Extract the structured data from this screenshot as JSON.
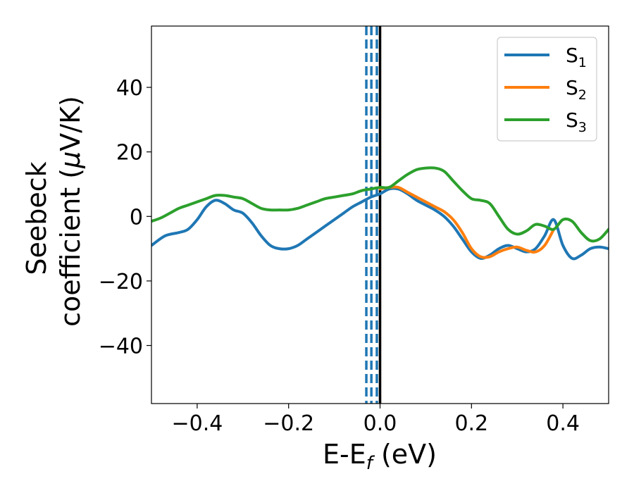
{
  "chart_data": {
    "type": "line",
    "title": "",
    "xlabel": {
      "main": "E-E",
      "sub": "f",
      "unit": " (eV)"
    },
    "ylabel": {
      "line1": "Seebeck",
      "line2": "coefficient  (",
      "mu": "μ",
      "line2_end": "V/K)"
    },
    "xlim": [
      -0.5,
      0.5
    ],
    "ylim": [
      -58,
      59
    ],
    "xticks": [
      -0.4,
      -0.2,
      0.0,
      0.2,
      0.4
    ],
    "xtick_labels": [
      "−0.4",
      "−0.2",
      "0.0",
      "0.2",
      "0.4"
    ],
    "yticks": [
      -40,
      -20,
      0,
      20,
      40
    ],
    "ytick_labels": [
      "−40",
      "−20",
      "0",
      "20",
      "40"
    ],
    "grid": false,
    "legend_position": "top-right",
    "vlines": [
      {
        "x": -0.03,
        "style": "dashed",
        "color": "#1f77b4"
      },
      {
        "x": -0.019,
        "style": "dashed",
        "color": "#1f77b4"
      },
      {
        "x": -0.007,
        "style": "dashed",
        "color": "#1f77b4"
      },
      {
        "x": 0.0,
        "style": "solid",
        "color": "#000000"
      }
    ],
    "series": [
      {
        "name": "S",
        "sub": "1",
        "color": "#1f77b4",
        "x": [
          -0.5,
          -0.47,
          -0.44,
          -0.42,
          -0.4,
          -0.38,
          -0.36,
          -0.34,
          -0.32,
          -0.3,
          -0.28,
          -0.26,
          -0.24,
          -0.22,
          -0.2,
          -0.18,
          -0.16,
          -0.14,
          -0.12,
          -0.1,
          -0.08,
          -0.06,
          -0.04,
          -0.02,
          0.0,
          0.02,
          0.04,
          0.06,
          0.08,
          0.1,
          0.12,
          0.14,
          0.16,
          0.18,
          0.2,
          0.22,
          0.24,
          0.26,
          0.28,
          0.3,
          0.32,
          0.34,
          0.36,
          0.38,
          0.4,
          0.42,
          0.44,
          0.46,
          0.48,
          0.5
        ],
        "y": [
          -9,
          -6,
          -5,
          -4,
          -1,
          3,
          5,
          4,
          2,
          1,
          -2,
          -6,
          -9,
          -10,
          -10,
          -9,
          -7,
          -5,
          -3,
          -1,
          1,
          3,
          4.5,
          6,
          7,
          8.5,
          8.5,
          7,
          5,
          3.5,
          2,
          0,
          -3,
          -7,
          -11,
          -13,
          -12,
          -10,
          -9,
          -10,
          -11,
          -10,
          -6,
          -1,
          -9,
          -13,
          -12,
          -10,
          -9.5,
          -10
        ],
        "y_note": "S1 overlaps S2 for most of the range"
      },
      {
        "name": "S",
        "sub": "2",
        "color": "#ff7f0e",
        "x": [
          0.0,
          0.02,
          0.04,
          0.06,
          0.08,
          0.1,
          0.12,
          0.14,
          0.16,
          0.18,
          0.2,
          0.22,
          0.24,
          0.26,
          0.28,
          0.3,
          0.32,
          0.34,
          0.36,
          0.38
        ],
        "y": [
          8.5,
          9,
          9,
          7.5,
          6,
          4.5,
          3,
          1.5,
          -1,
          -5,
          -10,
          -12.5,
          -12.5,
          -11,
          -10,
          -9.5,
          -10.5,
          -11,
          -9,
          -4
        ]
      },
      {
        "name": "S",
        "sub": "3",
        "color": "#2ca02c",
        "x": [
          -0.5,
          -0.48,
          -0.46,
          -0.44,
          -0.42,
          -0.4,
          -0.38,
          -0.36,
          -0.34,
          -0.32,
          -0.3,
          -0.28,
          -0.26,
          -0.24,
          -0.22,
          -0.2,
          -0.18,
          -0.16,
          -0.14,
          -0.12,
          -0.1,
          -0.08,
          -0.06,
          -0.04,
          -0.02,
          0.0,
          0.02,
          0.04,
          0.06,
          0.08,
          0.1,
          0.12,
          0.14,
          0.16,
          0.18,
          0.2,
          0.22,
          0.24,
          0.26,
          0.28,
          0.3,
          0.32,
          0.34,
          0.36,
          0.38,
          0.4,
          0.42,
          0.44,
          0.46,
          0.48,
          0.5
        ],
        "y": [
          -1.5,
          -0.5,
          1,
          2.5,
          3.5,
          4.5,
          5.5,
          6.5,
          6.5,
          6,
          5.5,
          4,
          2.5,
          2,
          2,
          2,
          2.5,
          3.5,
          4.5,
          5.5,
          6,
          6.5,
          7,
          8,
          8.5,
          9,
          9,
          11,
          13,
          14.5,
          15,
          15,
          14,
          11,
          8,
          5.5,
          5,
          4,
          0,
          -4,
          -5.5,
          -4.5,
          -2.5,
          -3,
          -4,
          -1,
          -1.5,
          -5,
          -7.5,
          -7,
          -4
        ]
      }
    ]
  }
}
